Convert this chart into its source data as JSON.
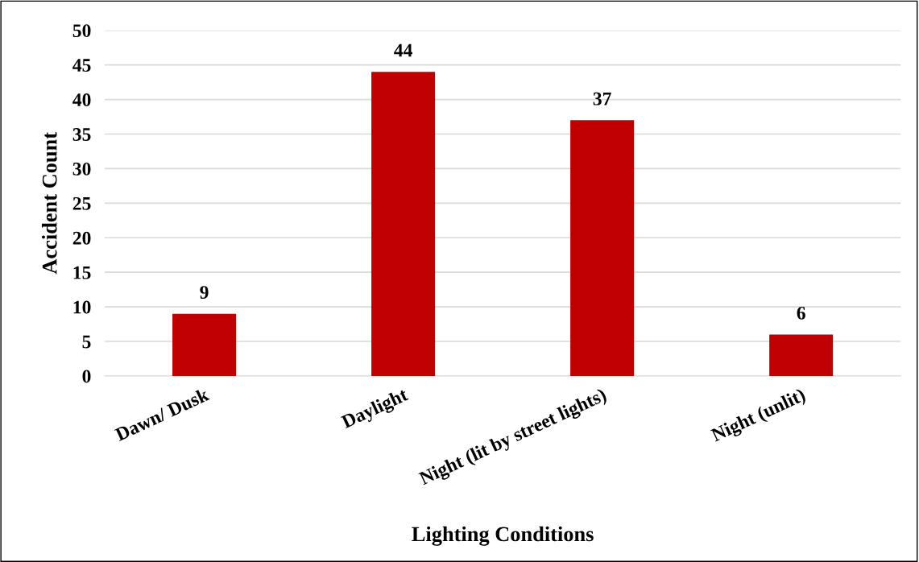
{
  "chart_data": {
    "type": "bar",
    "xlabel": "Lighting Conditions",
    "ylabel": "Accident Count",
    "categories": [
      "Dawn/ Dusk",
      "Daylight",
      "Night (lit by street lights)",
      "Night (unlit)"
    ],
    "values": [
      9,
      44,
      37,
      6
    ],
    "color": "#c00000",
    "ylim": [
      0,
      50
    ],
    "yticks": [
      0,
      5,
      10,
      15,
      20,
      25,
      30,
      35,
      40,
      45,
      50
    ],
    "grid": "y",
    "data_labels": true,
    "legend": false
  }
}
